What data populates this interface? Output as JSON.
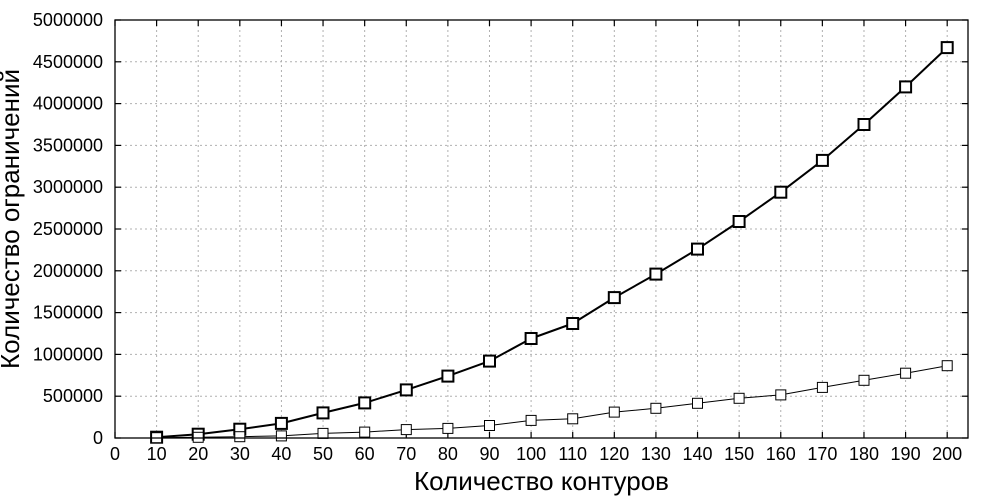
{
  "chart_data": {
    "type": "line",
    "xlabel": "Количество контуров",
    "ylabel": "Количество ограничений",
    "xlim": [
      0,
      205
    ],
    "ylim": [
      0,
      5000000
    ],
    "x_ticks": [
      0,
      10,
      20,
      30,
      40,
      50,
      60,
      70,
      80,
      90,
      100,
      110,
      120,
      130,
      140,
      150,
      160,
      170,
      180,
      190,
      200
    ],
    "y_ticks": [
      0,
      500000,
      1000000,
      1500000,
      2000000,
      2500000,
      3000000,
      3500000,
      4000000,
      4500000,
      5000000
    ],
    "grid": true,
    "x": [
      10,
      20,
      30,
      40,
      50,
      60,
      70,
      80,
      90,
      100,
      110,
      120,
      130,
      140,
      150,
      160,
      170,
      180,
      190,
      200
    ],
    "series": [
      {
        "color": "#000000",
        "marker": "square",
        "weight": "bold",
        "values": [
          10000,
          45000,
          105000,
          175000,
          300000,
          420000,
          575000,
          740000,
          920000,
          1190000,
          1370000,
          1680000,
          1960000,
          2260000,
          2590000,
          2940000,
          3320000,
          3750000,
          4200000,
          4670000
        ]
      },
      {
        "color": "#000000",
        "marker": "square",
        "weight": "thin",
        "values": [
          3000,
          8000,
          15000,
          25000,
          55000,
          70000,
          100000,
          115000,
          150000,
          210000,
          230000,
          310000,
          355000,
          415000,
          475000,
          515000,
          605000,
          690000,
          775000,
          865000
        ]
      }
    ]
  }
}
